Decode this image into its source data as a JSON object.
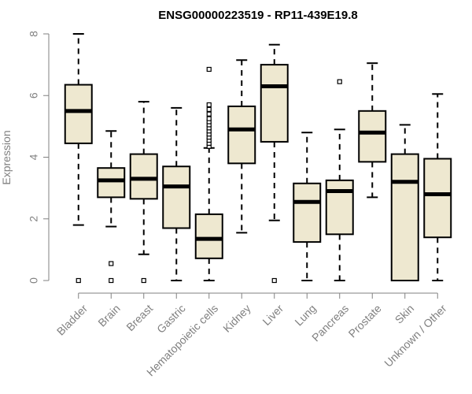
{
  "chart_data": {
    "type": "box",
    "title": "ENSG00000223519 - RP11-439E19.8",
    "ylabel": "Expression",
    "xlabel": "",
    "ylim": [
      0,
      8
    ],
    "yticks": [
      0,
      2,
      4,
      6,
      8
    ],
    "grid": false,
    "legend": "none",
    "box_fill": "#EEE8D0",
    "box_stroke": "#000000",
    "axis_color": "#808080",
    "categories": [
      "Bladder",
      "Brain",
      "Breast",
      "Gastric",
      "Hematopoietic cells",
      "Kidney",
      "Liver",
      "Lung",
      "Pancreas",
      "Prostate",
      "Skin",
      "Unknown / Other"
    ],
    "boxes": [
      {
        "whisker_low": 1.8,
        "q1": 4.45,
        "median": 5.5,
        "q3": 6.35,
        "whisker_high": 8.0,
        "outliers": [
          0
        ]
      },
      {
        "whisker_low": 1.75,
        "q1": 2.7,
        "median": 3.25,
        "q3": 3.65,
        "whisker_high": 4.85,
        "outliers": [
          0.55,
          0
        ]
      },
      {
        "whisker_low": 0.85,
        "q1": 2.65,
        "median": 3.3,
        "q3": 4.1,
        "whisker_high": 5.8,
        "outliers": [
          0
        ]
      },
      {
        "whisker_low": 0.0,
        "q1": 1.7,
        "median": 3.05,
        "q3": 3.7,
        "whisker_high": 5.6,
        "outliers": []
      },
      {
        "whisker_low": 0.0,
        "q1": 0.72,
        "median": 1.35,
        "q3": 2.15,
        "whisker_high": 4.3,
        "outliers": [
          4.35,
          4.45,
          4.55,
          4.65,
          4.75,
          4.85,
          4.95,
          5.05,
          5.15,
          5.25,
          5.4,
          5.55,
          5.7,
          6.85
        ]
      },
      {
        "whisker_low": 1.55,
        "q1": 3.8,
        "median": 4.9,
        "q3": 5.65,
        "whisker_high": 7.15,
        "outliers": []
      },
      {
        "whisker_low": 1.95,
        "q1": 4.5,
        "median": 6.3,
        "q3": 7.0,
        "whisker_high": 7.65,
        "outliers": [
          0
        ]
      },
      {
        "whisker_low": 0.0,
        "q1": 1.25,
        "median": 2.55,
        "q3": 3.15,
        "whisker_high": 4.8,
        "outliers": []
      },
      {
        "whisker_low": 0.0,
        "q1": 1.5,
        "median": 2.9,
        "q3": 3.25,
        "whisker_high": 4.9,
        "outliers": [
          6.45
        ]
      },
      {
        "whisker_low": 2.7,
        "q1": 3.85,
        "median": 4.8,
        "q3": 5.5,
        "whisker_high": 7.05,
        "outliers": []
      },
      {
        "whisker_low": 0.0,
        "q1": 0.0,
        "median": 3.2,
        "q3": 4.1,
        "whisker_high": 5.05,
        "outliers": []
      },
      {
        "whisker_low": 0.0,
        "q1": 1.4,
        "median": 2.8,
        "q3": 3.95,
        "whisker_high": 6.05,
        "outliers": []
      }
    ]
  }
}
